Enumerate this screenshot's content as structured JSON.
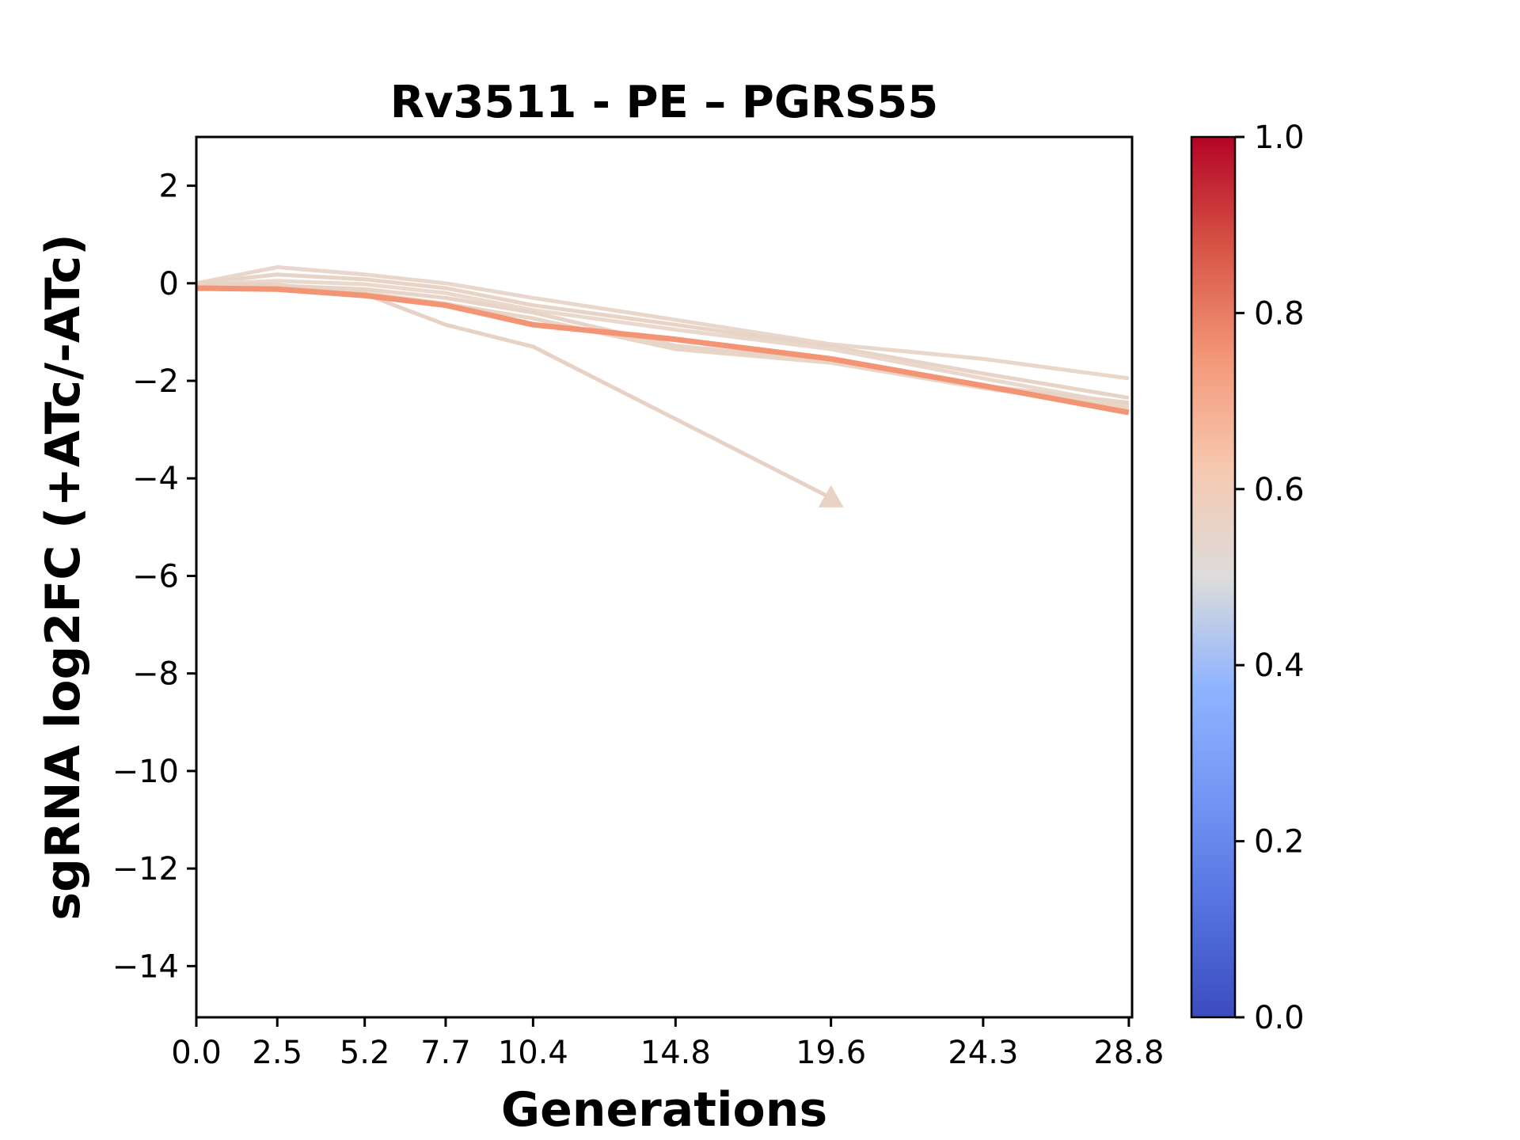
{
  "figure": {
    "title": "Rv3511 - PE – PGRS55",
    "xlabel": "Generations",
    "ylabel": "sgRNA log2FC (+ATc/-ATc)"
  },
  "chart_data": {
    "type": "line",
    "title": "Rv3511 - PE – PGRS55",
    "xlabel": "Generations",
    "ylabel": "sgRNA log2FC (+ATc/-ATc)",
    "xlim": [
      0,
      28.9
    ],
    "ylim": [
      -15.05,
      3.0
    ],
    "grid": false,
    "xticks": [
      {
        "value": 0.0,
        "label": "0.0"
      },
      {
        "value": 2.5,
        "label": "2.5"
      },
      {
        "value": 5.2,
        "label": "5.2"
      },
      {
        "value": 7.7,
        "label": "7.7"
      },
      {
        "value": 10.4,
        "label": "10.4"
      },
      {
        "value": 14.8,
        "label": "14.8"
      },
      {
        "value": 19.6,
        "label": "19.6"
      },
      {
        "value": 24.3,
        "label": "24.3"
      },
      {
        "value": 28.8,
        "label": "28.8"
      }
    ],
    "yticks": [
      {
        "value": 2,
        "label": "2"
      },
      {
        "value": 0,
        "label": "0"
      },
      {
        "value": -2,
        "label": "−2"
      },
      {
        "value": -4,
        "label": "−4"
      },
      {
        "value": -6,
        "label": "−6"
      },
      {
        "value": -8,
        "label": "−8"
      },
      {
        "value": -10,
        "label": "−10"
      },
      {
        "value": -12,
        "label": "−12"
      },
      {
        "value": -14,
        "label": "−14"
      }
    ],
    "series": [
      {
        "name": "line-1",
        "color": "#e9d7cb",
        "linewidth": 5,
        "x": [
          0,
          2.5,
          5.2,
          7.7,
          10.4,
          14.8,
          19.6,
          24.3,
          28.8
        ],
        "y": [
          0.0,
          0.33,
          0.18,
          0.0,
          -0.3,
          -0.75,
          -1.25,
          -1.55,
          -1.95
        ]
      },
      {
        "name": "line-2",
        "color": "#e8d4c6",
        "linewidth": 5,
        "x": [
          0,
          2.5,
          5.2,
          7.7,
          10.4,
          14.8,
          19.6,
          24.3,
          28.8
        ],
        "y": [
          0.0,
          0.18,
          0.08,
          -0.1,
          -0.45,
          -0.85,
          -1.3,
          -1.85,
          -2.35
        ]
      },
      {
        "name": "line-3",
        "color": "#ead8cc",
        "linewidth": 5,
        "x": [
          0,
          2.5,
          5.2,
          7.7,
          10.4,
          14.8,
          19.6,
          24.3,
          28.8
        ],
        "y": [
          -0.02,
          0.05,
          -0.02,
          -0.2,
          -0.55,
          -0.95,
          -1.35,
          -1.95,
          -2.5
        ]
      },
      {
        "name": "line-4",
        "color": "#e7d3c7",
        "linewidth": 5,
        "x": [
          0,
          2.5,
          5.2,
          7.7,
          10.4,
          14.8,
          19.6,
          24.3,
          28.8
        ],
        "y": [
          -0.05,
          -0.05,
          -0.12,
          -0.3,
          -0.6,
          -1.28,
          -1.6,
          -2.1,
          -2.45
        ]
      },
      {
        "name": "line-5",
        "color": "#e9d5c6",
        "linewidth": 5,
        "x": [
          0,
          2.5,
          5.2,
          7.7,
          10.4,
          14.8,
          19.6,
          24.3,
          28.8
        ],
        "y": [
          -0.08,
          -0.1,
          -0.2,
          -0.42,
          -0.72,
          -1.35,
          -1.63,
          -2.15,
          -2.55
        ]
      },
      {
        "name": "line-7-depleted",
        "color": "#e7d2c5",
        "linewidth": 5,
        "marker_end": "triangle-up",
        "x": [
          0,
          2.5,
          5.2,
          7.7,
          10.4,
          19.6
        ],
        "y": [
          0.0,
          -0.03,
          -0.22,
          -0.85,
          -1.3,
          -4.4
        ]
      },
      {
        "name": "line-6",
        "color": "#f39475",
        "linewidth": 7,
        "x": [
          0,
          2.5,
          5.2,
          7.7,
          10.4,
          14.8,
          19.6,
          24.3,
          28.8
        ],
        "y": [
          -0.1,
          -0.12,
          -0.25,
          -0.45,
          -0.85,
          -1.15,
          -1.55,
          -2.1,
          -2.65
        ]
      }
    ],
    "colorbar": {
      "cmap": "coolwarm",
      "ticks": [
        {
          "value": 1.0,
          "label": "1.0"
        },
        {
          "value": 0.8,
          "label": "0.8"
        },
        {
          "value": 0.6,
          "label": "0.6"
        },
        {
          "value": 0.4,
          "label": "0.4"
        },
        {
          "value": 0.2,
          "label": "0.2"
        },
        {
          "value": 0.0,
          "label": "0.0"
        }
      ],
      "gradient_top_to_bottom": [
        {
          "pos": 0.0,
          "color": "#b40426"
        },
        {
          "pos": 0.125,
          "color": "#d75445"
        },
        {
          "pos": 0.25,
          "color": "#f39778"
        },
        {
          "pos": 0.375,
          "color": "#f6c8af"
        },
        {
          "pos": 0.5,
          "color": "#dddcdb"
        },
        {
          "pos": 0.625,
          "color": "#8fb4fe"
        },
        {
          "pos": 0.75,
          "color": "#7396f5"
        },
        {
          "pos": 0.875,
          "color": "#5572df"
        },
        {
          "pos": 1.0,
          "color": "#3b4cc0"
        }
      ]
    }
  }
}
